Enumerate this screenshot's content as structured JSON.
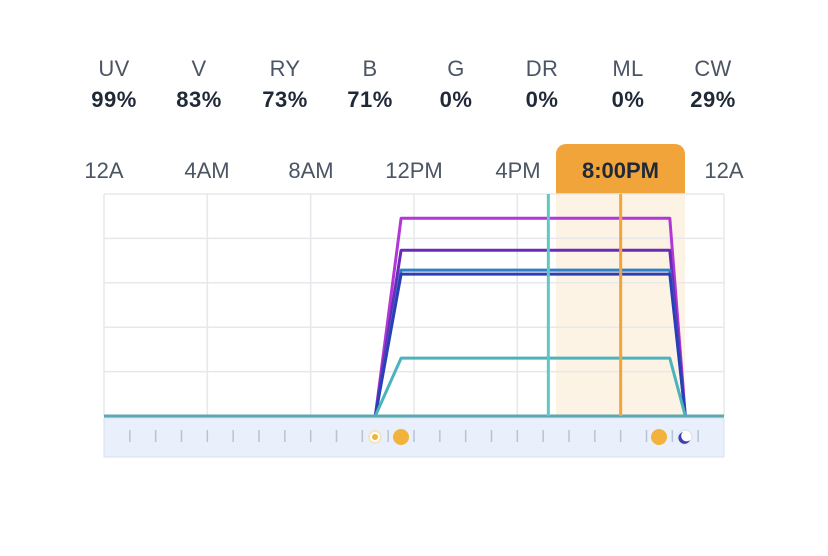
{
  "channels": [
    {
      "label": "UV",
      "value": "99%"
    },
    {
      "label": "V",
      "value": "83%"
    },
    {
      "label": "RY",
      "value": "73%"
    },
    {
      "label": "B",
      "value": "71%"
    },
    {
      "label": "G",
      "value": "0%"
    },
    {
      "label": "DR",
      "value": "0%"
    },
    {
      "label": "ML",
      "value": "0%"
    },
    {
      "label": "CW",
      "value": "29%"
    }
  ],
  "timeline": {
    "tick_labels": [
      "12A",
      "4AM",
      "8AM",
      "12PM",
      "4PM",
      "12A"
    ],
    "current_time_label": "8:00PM"
  },
  "colors": {
    "accent": "#f0a43a",
    "now_band": "#fdf3e4",
    "cursor_line": "#5ec8c4",
    "grid": "#e6e8eb",
    "strip": "#e9f0fb"
  },
  "chart_data": {
    "type": "line",
    "x_unit": "hours",
    "xlim": [
      0,
      24
    ],
    "ylim": [
      0,
      100
    ],
    "x_ticks": [
      0,
      4,
      8,
      12,
      16,
      20,
      24
    ],
    "grid": true,
    "current_time_hour": 20,
    "cursor_hour": 17.2,
    "sunrise_hour": 11.5,
    "sunset_hour": 21.9,
    "series": [
      {
        "color": "#b137d7",
        "points": [
          [
            10.5,
            0
          ],
          [
            11.5,
            99
          ],
          [
            21.9,
            99
          ],
          [
            22.5,
            0
          ]
        ]
      },
      {
        "color": "#6a2bb8",
        "points": [
          [
            10.5,
            0
          ],
          [
            11.5,
            83
          ],
          [
            21.9,
            83
          ],
          [
            22.5,
            0
          ]
        ]
      },
      {
        "color": "#2f7fc6",
        "points": [
          [
            10.5,
            0
          ],
          [
            11.5,
            73
          ],
          [
            21.9,
            73
          ],
          [
            22.5,
            0
          ]
        ]
      },
      {
        "color": "#2a3fb6",
        "points": [
          [
            10.5,
            0
          ],
          [
            11.5,
            71
          ],
          [
            21.9,
            71
          ],
          [
            22.5,
            0
          ]
        ]
      },
      {
        "color": "#4ab3bb",
        "points": [
          [
            10.5,
            0
          ],
          [
            11.5,
            29
          ],
          [
            21.9,
            29
          ],
          [
            22.5,
            0
          ]
        ]
      }
    ]
  }
}
